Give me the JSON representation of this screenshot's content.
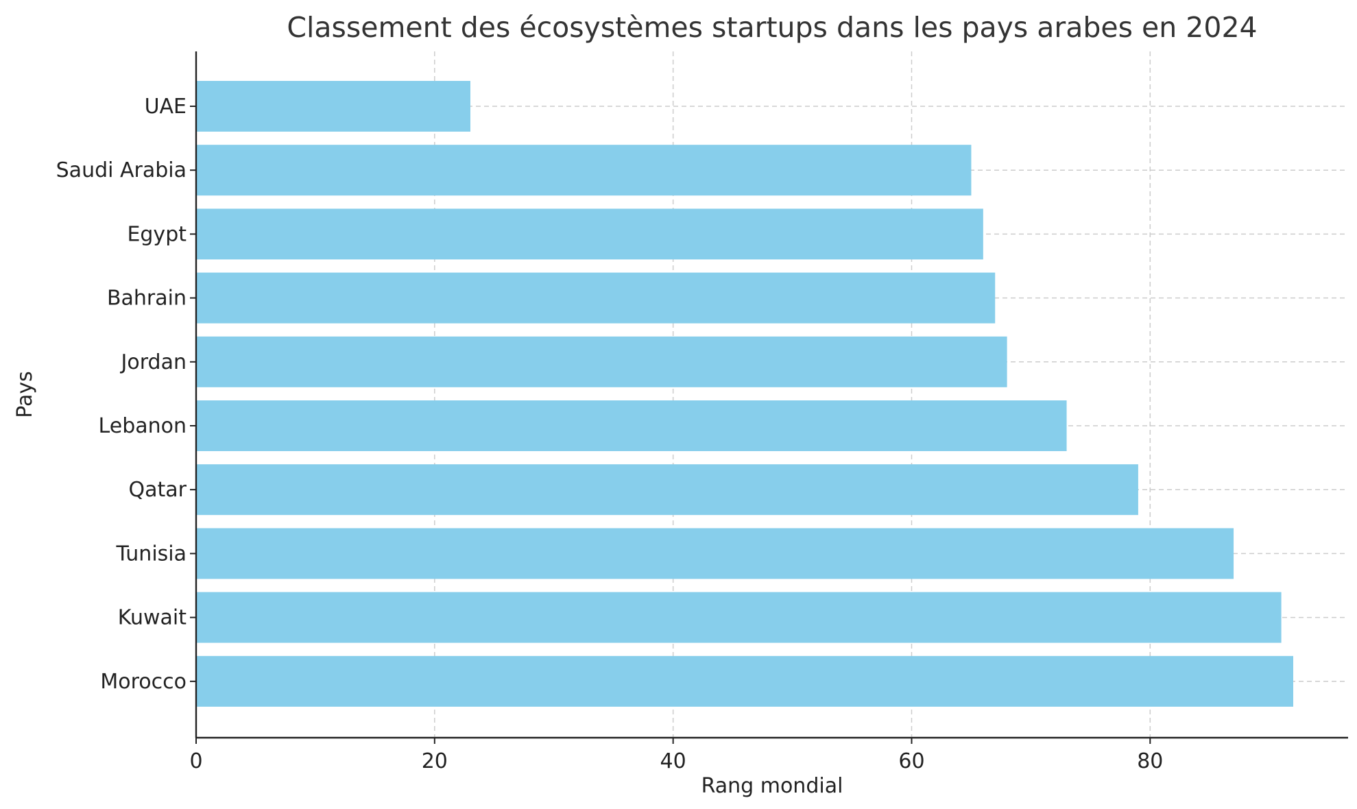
{
  "chart_data": {
    "type": "bar",
    "orientation": "horizontal",
    "title": "Classement des écosystèmes startups dans les pays arabes en 2024",
    "xlabel": "Rang mondial",
    "ylabel": "Pays",
    "categories": [
      "UAE",
      "Saudi Arabia",
      "Egypt",
      "Bahrain",
      "Jordan",
      "Lebanon",
      "Qatar",
      "Tunisia",
      "Kuwait",
      "Morocco"
    ],
    "values": [
      23,
      65,
      66,
      67,
      68,
      73,
      79,
      87,
      91,
      92
    ],
    "x_ticks": [
      0,
      20,
      40,
      60,
      80
    ],
    "xlim": [
      0,
      96.6
    ],
    "grid": true,
    "bar_color": "#87ceeb"
  }
}
